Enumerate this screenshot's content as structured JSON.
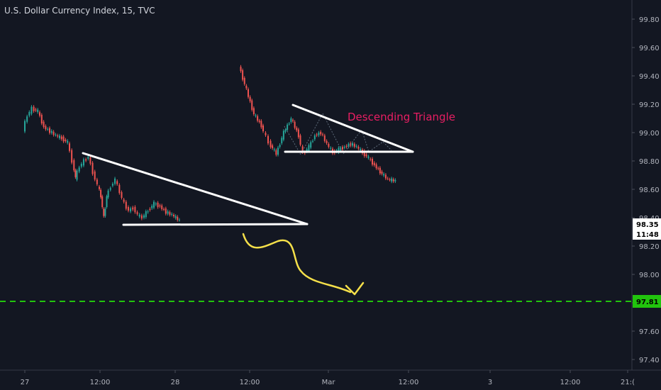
{
  "header": {
    "symbol_title": "U.S. Dollar Currency Index, 15, TVC"
  },
  "colors": {
    "background": "#131722",
    "up_candle": "#26a69a",
    "down_candle": "#ef5350",
    "pattern_lines": "#ffffff",
    "target_line": "#21c40d",
    "forecast_arrow": "#f5e04a",
    "annotation_text": "#e91e63",
    "axis_text": "#b2b5be"
  },
  "chart_data": {
    "type": "candlestick",
    "title": "U.S. Dollar Currency Index, 15, TVC",
    "x_ticks": [
      "27",
      "12:00",
      "28",
      "12:00",
      "Mar",
      "12:00",
      "3",
      "12:00",
      "21:("
    ],
    "y_ticks": [
      "99.80",
      "99.60",
      "99.40",
      "99.20",
      "99.00",
      "98.80",
      "98.60",
      "98.40",
      "98.20",
      "98.00",
      "97.80",
      "97.60",
      "97.40"
    ],
    "ylim": [
      97.35,
      99.88
    ],
    "current_price": {
      "value": 98.35,
      "label": "98.35",
      "countdown": "11:48"
    },
    "target_price": {
      "value": 97.81,
      "label": "97.81"
    },
    "annotations": [
      {
        "text": "Descending Triangle"
      }
    ],
    "price_path": [
      [
        27.0,
        99.02
      ],
      [
        27.03,
        99.12
      ],
      [
        27.06,
        99.17
      ],
      [
        27.1,
        99.15
      ],
      [
        27.14,
        99.04
      ],
      [
        27.18,
        99.01
      ],
      [
        27.22,
        98.98
      ],
      [
        27.26,
        98.96
      ],
      [
        27.3,
        98.93
      ],
      [
        27.33,
        98.8
      ],
      [
        27.35,
        98.68
      ],
      [
        27.38,
        98.76
      ],
      [
        27.41,
        98.8
      ],
      [
        27.44,
        98.83
      ],
      [
        27.47,
        98.72
      ],
      [
        27.5,
        98.63
      ],
      [
        27.52,
        98.55
      ],
      [
        27.54,
        98.4
      ],
      [
        27.56,
        98.55
      ],
      [
        27.59,
        98.62
      ],
      [
        27.62,
        98.67
      ],
      [
        27.65,
        98.58
      ],
      [
        27.68,
        98.5
      ],
      [
        27.71,
        98.45
      ],
      [
        27.74,
        98.47
      ],
      [
        27.77,
        98.42
      ],
      [
        27.8,
        98.4
      ],
      [
        27.84,
        98.45
      ],
      [
        27.88,
        98.5
      ],
      [
        27.92,
        98.48
      ],
      [
        27.96,
        98.44
      ],
      [
        28.0,
        98.42
      ],
      [
        28.05,
        98.38
      ],
      [
        28.45,
        99.47
      ],
      [
        28.5,
        99.3
      ],
      [
        28.55,
        99.13
      ],
      [
        28.6,
        99.05
      ],
      [
        28.65,
        98.93
      ],
      [
        28.7,
        98.85
      ],
      [
        28.75,
        99.0
      ],
      [
        28.8,
        99.1
      ],
      [
        28.85,
        98.98
      ],
      [
        28.88,
        98.85
      ],
      [
        28.92,
        98.9
      ],
      [
        28.96,
        98.98
      ],
      [
        29.0,
        99.0
      ],
      [
        29.04,
        98.92
      ],
      [
        29.08,
        98.86
      ],
      [
        29.12,
        98.88
      ],
      [
        29.16,
        98.9
      ],
      [
        29.2,
        98.92
      ],
      [
        29.24,
        98.9
      ],
      [
        29.28,
        98.86
      ],
      [
        29.32,
        98.82
      ],
      [
        29.36,
        98.77
      ],
      [
        29.41,
        98.71
      ],
      [
        29.45,
        98.67
      ],
      [
        29.5,
        98.66
      ]
    ]
  }
}
